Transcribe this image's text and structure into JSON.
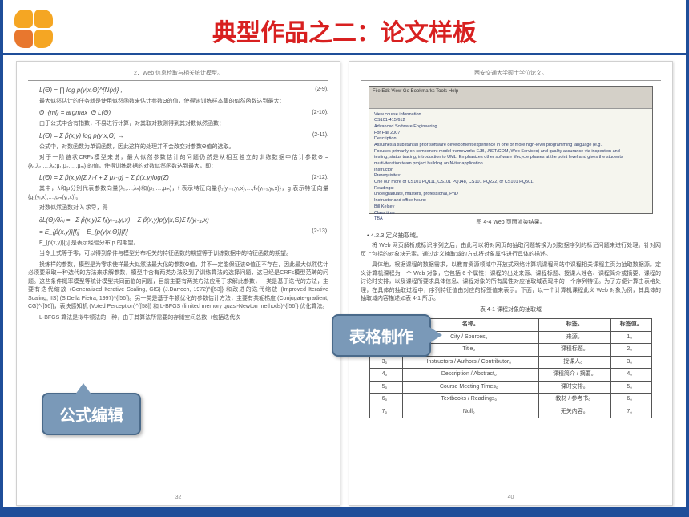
{
  "title": "典型作品之二：论文样板",
  "logo_colors": {
    "q1": "#f5a623",
    "q2": "#f5a623",
    "q3": "#e8772e",
    "q4": "#f5a623"
  },
  "callouts": {
    "formula": "公式编辑",
    "table": "表格制作"
  },
  "left_page": {
    "header": "2．Web 信息检取与相关统计模型。",
    "page_num": "32",
    "formulas": [
      {
        "tex": "L(Θ) = ∏ log p(y|x,Θ)^{N(x)} ,",
        "num": "(2-9)."
      },
      {
        "text": "最大似然估计的任务就是使用似然函数来估计参数Θ的值，使得该训练样本集的似然函数达到最大："
      },
      {
        "tex": "Θ_{ml} = argmax_Θ L(Θ)",
        "num": "(2-10)."
      },
      {
        "text": "由于公式中含有指数，不易进行计算，对其取对数则得到其对数似然函数："
      },
      {
        "tex": "L(Θ) = Σ p̂(x,y) log p(y|x,Θ)  →",
        "num": "(2-11)."
      },
      {
        "text": "公式中，对数函数为单调函数，因此这样的处理并不会改变对参数Θ值的选取。"
      },
      {
        "text": "对于一阶链状CRFs模型来说，最大似然参数估计的问题仍然是从相互独立的训练数据中估计参数Θ = {λ₁,λ₂,…,λₙ;μ₁,μ₂,…,μₘ} 的值，使得训练数据的对数似然函数达到最大，即："
      },
      {
        "tex": "L(Θ) = Σ p̂(x,y)[Σ λⱼ·f + Σ μₖ·g] − Σ p̂(x,y)log(Z)",
        "num": "(2-12)."
      },
      {
        "text": "其中，λ和μ分别代表参数向量(λ₁,…,λₙ)和(μ₁,…,μₘ)，f 表示特征向量{f₁(yᵢ₋₁,yᵢ,x),…,fₙ(yᵢ₋₁,yᵢ,x)}，g 表示特征向量{g₁(yᵢ,x),…,gₘ(yᵢ,x)}。"
      },
      {
        "text": "对数似然函数对 λⱼ 求导，得"
      },
      {
        "tex": "∂L(Θ)/∂λⱼ = −Σ p̂(x,y)Σ fⱼ(yᵢ₋₁,yᵢ,x) − Σ p̂(x,y)p(y|x,Θ)Σ fⱼ(yᵢ₋₁,x)",
        "num": ""
      },
      {
        "tex": "= E_{p̂(x,y)}[fⱼ] − E_{p(y|x,Θ)}[fⱼ]",
        "num": "(2-13)."
      },
      {
        "text": "E_{p̂(x,y)}[fⱼ] 是表示经验分布 p 的期望。"
      },
      {
        "text": "当令上式等于零，可以得到条件与模型分布相关的特征函数的期望等于训练数据中的特征函数的期望。"
      },
      {
        "text": "换练样的参数，模型是为零求使样最大似然法最大化的参数Θ值，并不一定能保证该Θ值正不存在，因此最大似然估计必须要采取一种选代的方法来求解参数，模型中含有两类办法及到了训练算法的选择问题，这已经是CRFs模型范畴的问题。这些条件概率模型等统计模型共同面临的问题，目前主要有两类方法应用于求解此参数，一类是基于迭代的方法，主要有迭代缩放 (Generalized Iterative Scaling, GIS) (J.Darroch, 1972)^{[53]} 和改进的迭代缩放 (Improved Iterative Scaling, IIS) (S.Della Pietra, 1997)^{[56]}。另一类是基于牛顿优化的参数估计方法，主要有共轭梯度 (Conjugate-gradient, CG)^{[56]}，表决感知机 (Voted Perception)^{[58]} 和 L-BFGS (limited memory quasi-Newton methods)^{[56]} 优化算法。"
      },
      {
        "text": "L-BFGS 算法是拟牛顿法的一种，由于其算法所需要的存储空间总数（包括迭代次"
      }
    ]
  },
  "right_page": {
    "header": "西安交通大学硕士学位论文。",
    "page_num": "40",
    "browser": {
      "toolbar": "File Edit View Go Bookmarks Tools Help",
      "lines": [
        "View course information",
        "CS101-415/612",
        "Advanced Software Engineering",
        "For Fall 2007",
        "Description:",
        "Assumes a substantial prior software development experience in one or more high-level programming language (e.g.,",
        "Focuses primarily on component model frameworks EJB, .NET/COM, Web Services) and quality assurance via inspection and",
        "testing, status tracing, introduction to UML. Emphasizes other software lifecycle phases at the point level and gives the students",
        "multi-iteration team project building an N-tier application.",
        "Instructor:",
        "Prerequisites:",
        "One our more of CS101 PQ111, CS101 PQ148, CS101 PQ222, or CS101 PQ501.",
        "Readings:",
        "undergraduate, masters, professional, PhD",
        "Instructor and office hours:",
        "Bill Kelsey",
        "Class time",
        "TBA"
      ]
    },
    "figure_caption": "图 4-4  Web 页面渲染结果。",
    "section_num": "•    4.2.3 定义抽取域。",
    "paragraphs": [
      "将 Web 网页解析成标识序列之后，由此可以将对网页的抽取问题转换为对数据序列的标记问题来进行处理。针对网页上包括的对象块元素，通过定义抽取域的方式将对象属性进行具体的描述。",
      "具体地，根据课程的数据需求，以教育资源领域中开放式网络计算机课程网站中课程相关课程主页为抽取数据源。定义计算机课程为一个 Web 对象，它包括 6 个属性：课程的出处来源、课程标题、授课人姓名、课程简介或摘要、课程的讨论时安排，以及课程所要求具体信息、课程对象的所有属性对应抽取域表现中的一个序列特征。为了方便计算由表格处理，在具体的抽取过程中，序列特征值由对应的标签值来表示。下面，以一个计算机课程此义 Web 对象为例，其具体的抽取域内容描述如表 4-1 所示。"
    ],
    "table_caption": "表 4-1 课程对象的抽取域",
    "table": {
      "columns": [
        "编号。",
        "名称。",
        "标签。",
        "标签值。"
      ],
      "rows": [
        [
          "1。",
          "City / Sources。",
          "来源。",
          "1。"
        ],
        [
          "2。",
          "Title。",
          "课程标题。",
          "2。"
        ],
        [
          "3。",
          "Instructors / Authors / Contributor。",
          "授课人。",
          "3。"
        ],
        [
          "4。",
          "Description / Abstract。",
          "课程简介 / 摘要。",
          "4。"
        ],
        [
          "5。",
          "Course Meeting Times。",
          "课时安排。",
          "5。"
        ],
        [
          "6。",
          "Textbooks / Readings。",
          "教材 / 参考书。",
          "6。"
        ],
        [
          "7。",
          "Null。",
          "无关内容。",
          "7。"
        ]
      ]
    }
  }
}
